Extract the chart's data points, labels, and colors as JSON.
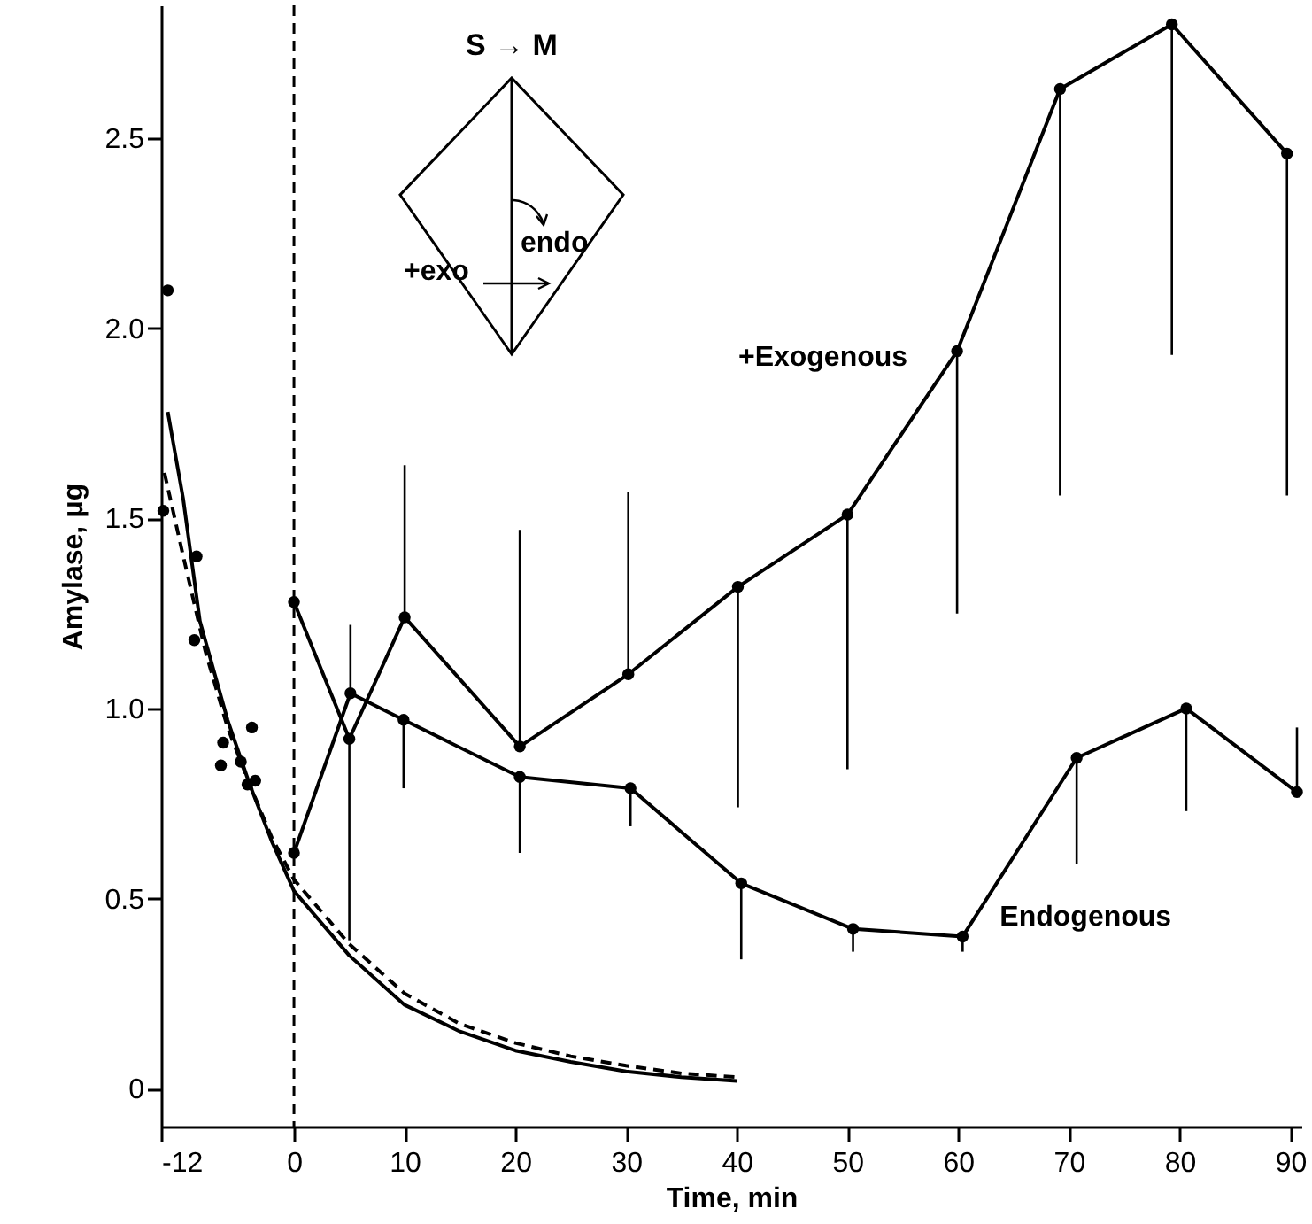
{
  "chart_data": {
    "type": "line",
    "xlabel": "Time, min",
    "ylabel": "Amylase, μg",
    "xlim": [
      -12,
      91
    ],
    "xticks": [
      -12,
      0,
      10,
      20,
      30,
      40,
      50,
      60,
      70,
      80,
      90
    ],
    "ylim": [
      -0.1,
      2.85
    ],
    "yticks": [
      0,
      0.5,
      {
        "value": 1,
        "label": "1.0"
      },
      1.5,
      {
        "value": 2,
        "label": "2.0"
      },
      2.5
    ],
    "grid": false,
    "marker": "circle",
    "ref_lines": [
      {
        "axis": "x",
        "value": 0,
        "line_style": "dashed",
        "color": "#000000"
      }
    ],
    "annotations": [
      "S → M",
      "endo",
      "+exo"
    ],
    "series": [
      {
        "name": "+Exogenous",
        "color": "#000000",
        "x": [
          0,
          5,
          10,
          20.4,
          30.2,
          40.1,
          50,
          59.9,
          69.2,
          79.3,
          89.7
        ],
        "values": [
          1.28,
          0.92,
          1.24,
          0.9,
          1.09,
          1.32,
          1.51,
          1.94,
          2.63,
          2.8,
          2.46
        ],
        "errors": [
          null,
          [
            0.39,
            0.92
          ],
          [
            1.24,
            1.64
          ],
          [
            0.9,
            1.47
          ],
          [
            1.09,
            1.57
          ],
          [
            0.74,
            1.32
          ],
          [
            0.84,
            1.51
          ],
          [
            1.25,
            1.94
          ],
          [
            1.56,
            2.63
          ],
          [
            1.93,
            2.8
          ],
          [
            1.56,
            2.46
          ]
        ]
      },
      {
        "name": "Endogenous",
        "color": "#000000",
        "x": [
          0,
          5.1,
          9.9,
          20.4,
          30.4,
          40.4,
          50.5,
          60.4,
          70.7,
          80.6,
          90.6
        ],
        "values": [
          0.62,
          1.04,
          0.97,
          0.82,
          0.79,
          0.54,
          0.42,
          0.4,
          0.87,
          1.0,
          0.78
        ],
        "errors": [
          null,
          [
            1.04,
            1.22
          ],
          [
            0.79,
            0.97
          ],
          [
            0.62,
            0.82
          ],
          [
            0.69,
            0.79
          ],
          [
            0.34,
            0.54
          ],
          [
            0.36,
            0.42
          ],
          [
            0.36,
            0.4
          ],
          [
            0.59,
            0.87
          ],
          [
            0.73,
            1.0
          ],
          [
            0.78,
            0.95
          ]
        ]
      },
      {
        "type": "scatter",
        "color": "#000000",
        "x": [
          -11.4,
          -9.0,
          -6.6,
          -3.8
        ],
        "values": [
          2.1,
          1.18,
          0.85,
          0.95
        ]
      },
      {
        "type": "scatter",
        "color": "#000000",
        "x": [
          -11.8,
          -8.8,
          -6.4,
          -4.8,
          -4.2,
          -3.5
        ],
        "values": [
          1.52,
          1.4,
          0.91,
          0.86,
          0.8,
          0.81
        ]
      },
      {
        "type": "line",
        "color": "#000000",
        "marker": "none",
        "line_style": "solid",
        "x": [
          -11.4,
          -10,
          -8.5,
          -6,
          -4,
          -2,
          0,
          5,
          10,
          15,
          20,
          25,
          30,
          35,
          40
        ],
        "values": [
          1.78,
          1.55,
          1.23,
          0.97,
          0.8,
          0.65,
          0.52,
          0.35,
          0.22,
          0.15,
          0.1,
          0.07,
          0.045,
          0.03,
          0.02
        ]
      },
      {
        "type": "line",
        "color": "#000000",
        "marker": "none",
        "line_style": "dashed",
        "x": [
          -11.7,
          -10,
          -8,
          -6,
          -4,
          -2,
          0,
          5,
          10,
          15,
          20,
          25,
          30,
          35,
          40
        ],
        "values": [
          1.62,
          1.4,
          1.15,
          0.95,
          0.8,
          0.66,
          0.55,
          0.38,
          0.25,
          0.17,
          0.12,
          0.085,
          0.06,
          0.04,
          0.03
        ]
      }
    ]
  }
}
